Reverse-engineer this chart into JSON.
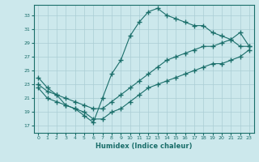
{
  "xlabel": "Humidex (Indice chaleur)",
  "bg_color": "#cce8ec",
  "grid_color": "#aacdd4",
  "line_color": "#1a6e6a",
  "xlim": [
    -0.5,
    23.5
  ],
  "ylim": [
    16.0,
    34.5
  ],
  "yticks": [
    17,
    19,
    21,
    23,
    25,
    27,
    29,
    31,
    33
  ],
  "xticks": [
    0,
    1,
    2,
    3,
    4,
    5,
    6,
    7,
    8,
    9,
    10,
    11,
    12,
    13,
    14,
    15,
    16,
    17,
    18,
    19,
    20,
    21,
    22,
    23
  ],
  "line1_x": [
    0,
    1,
    2,
    3,
    4,
    5,
    6,
    7,
    8,
    9,
    10,
    11,
    12,
    13,
    14,
    15,
    16,
    17,
    18,
    19,
    20,
    21,
    22,
    23
  ],
  "line1_y": [
    24.0,
    22.5,
    21.5,
    20.0,
    19.5,
    18.5,
    17.5,
    21.0,
    24.5,
    26.5,
    30.0,
    32.0,
    33.5,
    34.0,
    33.0,
    32.5,
    32.0,
    31.5,
    31.5,
    30.5,
    30.0,
    29.5,
    28.5,
    28.5
  ],
  "line2_x": [
    0,
    1,
    2,
    3,
    4,
    5,
    6,
    7,
    8,
    9,
    10,
    11,
    12,
    13,
    14,
    15,
    16,
    17,
    18,
    19,
    20,
    21,
    22,
    23
  ],
  "line2_y": [
    23.0,
    22.0,
    21.5,
    21.0,
    20.5,
    20.0,
    19.5,
    19.5,
    20.5,
    21.5,
    22.5,
    23.5,
    24.5,
    25.5,
    26.5,
    27.0,
    27.5,
    28.0,
    28.5,
    28.5,
    29.0,
    29.5,
    30.5,
    28.5
  ],
  "line3_x": [
    0,
    1,
    2,
    3,
    4,
    5,
    6,
    7,
    8,
    9,
    10,
    11,
    12,
    13,
    14,
    15,
    16,
    17,
    18,
    19,
    20,
    21,
    22,
    23
  ],
  "line3_y": [
    22.5,
    21.0,
    20.5,
    20.0,
    19.5,
    19.0,
    18.0,
    18.0,
    19.0,
    19.5,
    20.5,
    21.5,
    22.5,
    23.0,
    23.5,
    24.0,
    24.5,
    25.0,
    25.5,
    26.0,
    26.0,
    26.5,
    27.0,
    28.0
  ]
}
